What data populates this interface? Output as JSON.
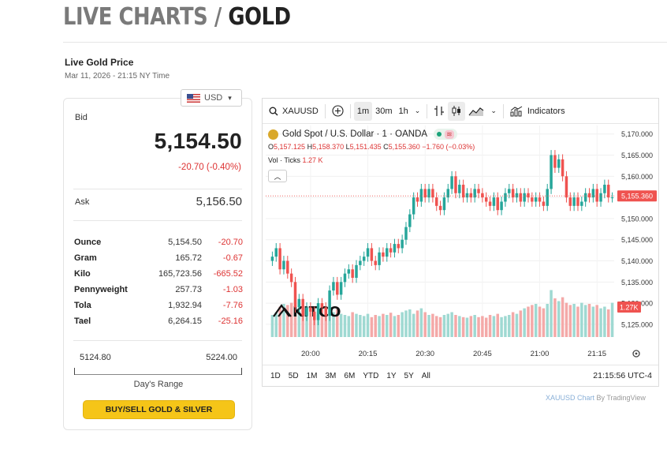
{
  "header": {
    "title_prefix": "LIVE CHARTS /",
    "title_main": "GOLD"
  },
  "live_price": {
    "label": "Live Gold Price",
    "timestamp": "Mar 11, 2026 - 21:15 NY Time"
  },
  "currency": {
    "selected": "USD",
    "icon": "us-flag-icon"
  },
  "prices": {
    "bid_label": "Bid",
    "bid": "5,154.50",
    "change": "-20.70 (-0.40%)",
    "ask_label": "Ask",
    "ask": "5,156.50",
    "units": [
      {
        "name": "Ounce",
        "price": "5,154.50",
        "change": "-20.70"
      },
      {
        "name": "Gram",
        "price": "165.72",
        "change": "-0.67"
      },
      {
        "name": "Kilo",
        "price": "165,723.56",
        "change": "-665.52"
      },
      {
        "name": "Pennyweight",
        "price": "257.73",
        "change": "-1.03"
      },
      {
        "name": "Tola",
        "price": "1,932.94",
        "change": "-7.76"
      },
      {
        "name": "Tael",
        "price": "6,264.15",
        "change": "-25.16"
      }
    ],
    "range_low": "5124.80",
    "range_high": "5224.00",
    "range_label": "Day's Range",
    "buy_button": "BUY/SELL GOLD & SILVER"
  },
  "chart": {
    "toolbar": {
      "symbol": "XAUUSD",
      "intervals": [
        "1m",
        "30m",
        "1h"
      ],
      "active_interval": "1m",
      "indicators": "Indicators"
    },
    "legend": {
      "name": "Gold Spot / U.S. Dollar · 1 · OANDA",
      "o": "5,157.125",
      "h": "5,158.370",
      "l": "5,151.435",
      "c": "5,155.360",
      "chg": "−1.760 (−0.03%)",
      "vol_label": "Vol · Ticks",
      "vol_value": "1.27 K"
    },
    "watermark": "KITCO",
    "timeframes": [
      "1D",
      "5D",
      "1M",
      "3M",
      "6M",
      "YTD",
      "1Y",
      "5Y",
      "All"
    ],
    "clock": "21:15:56 UTC-4",
    "attribution_link": "XAUUSD Chart",
    "attribution_rest": " By TradingView"
  },
  "chart_data": {
    "type": "candlestick",
    "price_axis_labels": [
      "5,170.000",
      "5,165.000",
      "5,160.000",
      "5,155.000",
      "5,150.000",
      "5,145.000",
      "5,140.000",
      "5,135.000",
      "5,130.000",
      "5,125.000"
    ],
    "time_axis_labels": [
      "20:00",
      "20:15",
      "20:30",
      "20:45",
      "21:00",
      "21:15"
    ],
    "ylim": [
      5122,
      5172
    ],
    "last_price": "5,155.360",
    "last_volume": "1.27K",
    "colors": {
      "up": "#26a69a",
      "down": "#ef5350",
      "vol_up": "#9fd9d2",
      "vol_down": "#f4a9a8"
    },
    "x_start": "19:50",
    "minutes_per_candle": 1,
    "closes": [
      5141,
      5143,
      5138,
      5140,
      5137,
      5135,
      5129,
      5131,
      5127,
      5129,
      5128,
      5126,
      5130,
      5129,
      5127,
      5133,
      5135,
      5132,
      5135,
      5137,
      5138,
      5136,
      5139,
      5140,
      5141,
      5143,
      5140,
      5139,
      5142,
      5141,
      5143,
      5142,
      5144,
      5143,
      5145,
      5148,
      5151,
      5155,
      5154,
      5157,
      5155,
      5157,
      5155,
      5153,
      5152,
      5155,
      5157,
      5160,
      5156,
      5158,
      5155,
      5156,
      5155,
      5157,
      5156,
      5155,
      5154,
      5153,
      5155,
      5152,
      5154,
      5156,
      5157,
      5155,
      5156,
      5154,
      5156,
      5155,
      5154,
      5155,
      5154,
      5153,
      5157,
      5165,
      5162,
      5164,
      5160,
      5155,
      5153,
      5155,
      5153,
      5154,
      5156,
      5155,
      5157,
      5154,
      5156,
      5158,
      5155,
      5155
    ],
    "volumes": [
      40,
      45,
      55,
      60,
      58,
      62,
      50,
      48,
      52,
      55,
      50,
      45,
      40,
      50,
      55,
      48,
      45,
      50,
      42,
      40,
      38,
      45,
      42,
      40,
      38,
      42,
      36,
      40,
      38,
      42,
      40,
      44,
      38,
      40,
      45,
      48,
      50,
      42,
      48,
      52,
      45,
      40,
      42,
      38,
      36,
      40,
      42,
      45,
      40,
      38,
      36,
      35,
      38,
      40,
      36,
      38,
      35,
      40,
      38,
      42,
      36,
      38,
      40,
      45,
      42,
      48,
      52,
      55,
      58,
      60,
      55,
      52,
      60,
      85,
      70,
      65,
      72,
      62,
      58,
      60,
      55,
      62,
      58,
      60,
      55,
      58,
      52,
      55,
      50,
      62
    ]
  }
}
